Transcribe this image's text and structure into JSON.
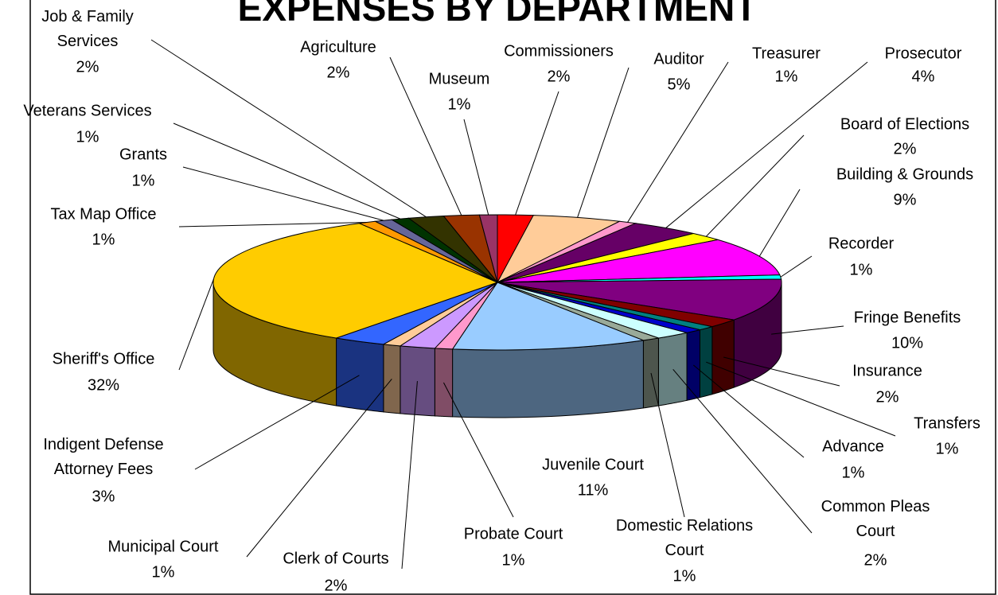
{
  "chart_data": {
    "type": "pie3d",
    "title": "EXPENSES BY DEPARTMENT",
    "categories": [
      "Commissioners",
      "Auditor",
      "Treasurer",
      "Prosecutor",
      "Board of Elections",
      "Building & Grounds",
      "Recorder",
      "Fringe Benefits",
      "Insurance",
      "Transfers",
      "Advance",
      "Common Pleas\nCourt",
      "Domestic Relations\nCourt",
      "Juvenile Court",
      "Probate Court",
      "Clerk of Courts",
      "Municipal Court",
      "Indigent Defense\nAttorney Fees",
      "Sheriff's Office",
      "Tax Map Office",
      "Grants",
      "Veterans Services",
      "Job & Family\nServices",
      "Agriculture",
      "Museum"
    ],
    "values": [
      2,
      5,
      1,
      4,
      2,
      9,
      1,
      10,
      2,
      1,
      1,
      2,
      1,
      11,
      1,
      2,
      1,
      3,
      32,
      1,
      1,
      1,
      2,
      2,
      1
    ],
    "value_labels": [
      "2%",
      "5%",
      "1%",
      "4%",
      "2%",
      "9%",
      "1%",
      "10%",
      "2%",
      "1%",
      "1%",
      "2%",
      "1%",
      "11%",
      "1%",
      "2%",
      "1%",
      "3%",
      "32%",
      "1%",
      "1%",
      "1%",
      "2%",
      "2%",
      "1%"
    ],
    "colors": [
      "#ff0000",
      "#ffcc99",
      "#ff99cc",
      "#660066",
      "#ffff00",
      "#ff00ff",
      "#00ffff",
      "#800080",
      "#800000",
      "#008080",
      "#0000cc",
      "#ccffff",
      "#99aa99",
      "#99ccff",
      "#ff99cc",
      "#cc99ff",
      "#ffcc99",
      "#3366ff",
      "#ffcc00",
      "#ff9900",
      "#666699",
      "#003300",
      "#333300",
      "#993300",
      "#993366"
    ]
  }
}
